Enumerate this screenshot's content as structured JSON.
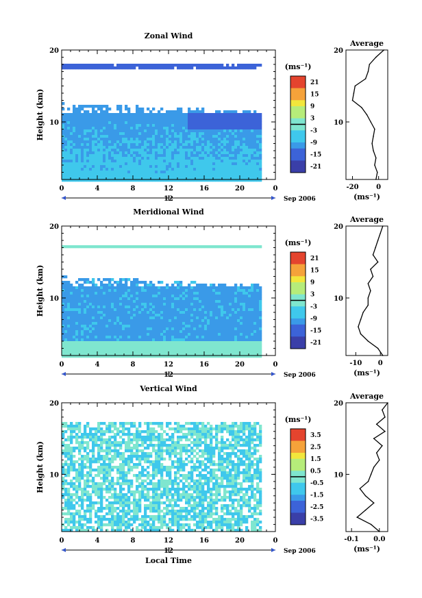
{
  "chart_data": [
    {
      "type": "heatmap",
      "title": "Zonal Wind",
      "ylabel": "Height (km)",
      "x_ticks": [
        "0",
        "4",
        "8",
        "12",
        "16",
        "20",
        "0"
      ],
      "y_ticks": [
        "20",
        "10"
      ],
      "xlim": [
        0,
        24
      ],
      "ylim": [
        2,
        20
      ],
      "date_tick": "12",
      "date_label": "Sep 2006",
      "colorbar": {
        "unit": "(ms⁻¹)",
        "ticks": [
          "21",
          "15",
          "9",
          "3",
          "-3",
          "-9",
          "-15",
          "-21"
        ],
        "range": [
          -24,
          24
        ]
      },
      "profile": {
        "title": "Average",
        "xlabel": "(ms⁻¹)",
        "x_ticks": [
          "-20",
          "0"
        ],
        "y_ticks": [
          "20",
          "10"
        ],
        "xlim": [
          -25,
          7
        ],
        "heights": [
          2,
          3,
          4,
          5,
          6,
          7,
          8,
          9,
          10,
          11,
          12,
          13,
          14,
          15,
          16,
          17,
          18,
          19,
          20
        ],
        "values": [
          -2,
          -1,
          -3,
          -2,
          -4,
          -5,
          -4,
          -3,
          -6,
          -9,
          -13,
          -20,
          -19,
          -18,
          -10,
          -8,
          -7,
          -2,
          4
        ]
      }
    },
    {
      "type": "heatmap",
      "title": "Meridional Wind",
      "ylabel": "Height (km)",
      "x_ticks": [
        "0",
        "4",
        "8",
        "12",
        "16",
        "20",
        "0"
      ],
      "y_ticks": [
        "20",
        "10"
      ],
      "xlim": [
        0,
        24
      ],
      "ylim": [
        2,
        20
      ],
      "date_tick": "12",
      "date_label": "Sep 2006",
      "colorbar": {
        "unit": "(ms⁻¹)",
        "ticks": [
          "21",
          "15",
          "9",
          "3",
          "-3",
          "-9",
          "-15",
          "-21"
        ],
        "range": [
          -24,
          24
        ]
      },
      "profile": {
        "title": "Average",
        "xlabel": "(ms⁻¹)",
        "x_ticks": [
          "-10",
          "0"
        ],
        "y_ticks": [
          "20",
          "10"
        ],
        "xlim": [
          -14,
          3
        ],
        "heights": [
          2,
          3,
          4,
          5,
          6,
          7,
          8,
          9,
          10,
          11,
          12,
          13,
          14,
          15,
          16,
          17,
          18,
          19,
          20
        ],
        "values": [
          1,
          -1,
          -5,
          -8,
          -9,
          -8,
          -7,
          -5,
          -5,
          -4,
          -5,
          -3,
          -4,
          -1,
          -3,
          -2,
          -1,
          0,
          1
        ]
      }
    },
    {
      "type": "heatmap",
      "title": "Vertical Wind",
      "ylabel": "Height (km)",
      "xlabel": "Local Time",
      "x_ticks": [
        "0",
        "4",
        "8",
        "12",
        "16",
        "20",
        "0"
      ],
      "y_ticks": [
        "20",
        "10"
      ],
      "xlim": [
        0,
        24
      ],
      "ylim": [
        2,
        20
      ],
      "date_tick": "12",
      "date_label": "Sep 2006",
      "colorbar": {
        "unit": "(ms⁻¹)",
        "ticks": [
          "3.5",
          "2.5",
          "1.5",
          "0.5",
          "-0.5",
          "-1.5",
          "-2.5",
          "-3.5"
        ],
        "range": [
          -4,
          4
        ]
      },
      "profile": {
        "title": "Average",
        "xlabel": "(ms⁻¹)",
        "x_ticks": [
          "-0.1",
          "0.0"
        ],
        "y_ticks": [
          "20",
          "10"
        ],
        "xlim": [
          -0.12,
          0.03
        ],
        "heights": [
          2,
          3,
          4,
          5,
          6,
          7,
          8,
          9,
          10,
          11,
          12,
          13,
          14,
          15,
          16,
          17,
          18,
          19,
          20
        ],
        "values": [
          0.0,
          -0.03,
          -0.08,
          -0.05,
          -0.02,
          -0.05,
          -0.07,
          -0.04,
          -0.03,
          -0.02,
          0.0,
          -0.01,
          0.01,
          -0.02,
          0.02,
          -0.01,
          0.02,
          0.01,
          0.03
        ]
      }
    }
  ]
}
